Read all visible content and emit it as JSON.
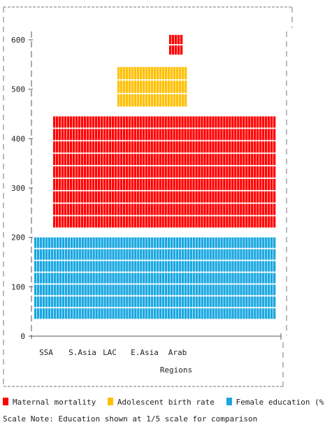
{
  "chart_data": {
    "type": "bar",
    "title": "",
    "xlabel": "Regions",
    "ylabel": "",
    "categories": [
      "SSA",
      "S.Asia",
      "LAC",
      "E.Asia",
      "Arab"
    ],
    "ylim": [
      0,
      630
    ],
    "yticks": [
      0,
      100,
      200,
      300,
      400,
      500,
      600
    ],
    "grid": false,
    "legend_position": "bottom",
    "series": [
      {
        "name": "Female education (%)",
        "color": "#1aa7e0",
        "bands": [
          {
            "from": 35,
            "to": 200,
            "x_start": "far-left",
            "x_end": "far-right"
          }
        ]
      },
      {
        "name": "Maternal mortality",
        "color": "#ff0000",
        "bands": [
          {
            "from": 220,
            "to": 445,
            "x_start": "SSA",
            "x_end": "far-right"
          },
          {
            "from": 570,
            "to": 610,
            "x_start": "Arab",
            "x_end": "Arab"
          }
        ]
      },
      {
        "name": "Adolescent birth rate",
        "color": "#ffc000",
        "bands": [
          {
            "from": 465,
            "to": 545,
            "x_start": "LAC",
            "x_end": "Arab"
          }
        ]
      }
    ],
    "legend": [
      {
        "label": "Maternal mortality",
        "color": "#ff0000"
      },
      {
        "label": "Adolescent birth rate",
        "color": "#ffc000"
      },
      {
        "label": "Female education (%)",
        "color": "#1aa7e0"
      }
    ],
    "note": "Scale Note: Education shown at 1/5 scale for comparison"
  }
}
